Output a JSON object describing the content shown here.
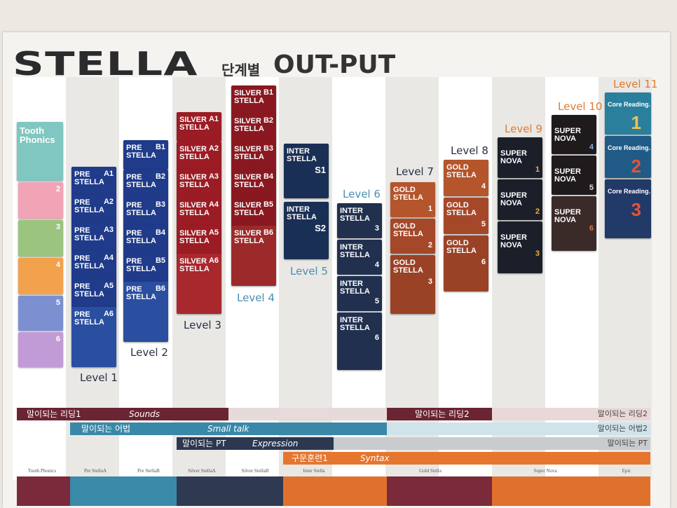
{
  "header": {
    "brand": "STELLA",
    "subtitle": "단계별",
    "subtitle2": "OUT-PUT"
  },
  "levels": [
    {
      "label": "Level 1",
      "color": "#2a2f44"
    },
    {
      "label": "Level 2",
      "color": "#2a2f44"
    },
    {
      "label": "Level 3",
      "color": "#2a2f44"
    },
    {
      "label": "Level 4",
      "color": "#4a8fb3"
    },
    {
      "label": "Level 5",
      "color": "#4a8fb3"
    },
    {
      "label": "Level 6",
      "color": "#4a8fb3"
    },
    {
      "label": "Level 7",
      "color": "#2a2f44"
    },
    {
      "label": "Level 8",
      "color": "#2a2f44"
    },
    {
      "label": "Level 9",
      "color": "#e07a2e"
    },
    {
      "label": "Level 10",
      "color": "#e07a2e"
    },
    {
      "label": "Level 11",
      "color": "#e07a2e"
    }
  ],
  "books": {
    "tooth": {
      "title": "Tooth Phonics",
      "nums": [
        "1",
        "2",
        "3",
        "4",
        "5",
        "6"
      ]
    },
    "pre_a": {
      "title": "PRE STELLA",
      "nums": [
        "A1",
        "A2",
        "A3",
        "A4",
        "A5",
        "A6"
      ]
    },
    "pre_b": {
      "title": "PRE STELLA",
      "nums": [
        "B1",
        "B2",
        "B3",
        "B4",
        "B5",
        "B6"
      ]
    },
    "silver_a": {
      "title": "SILVER STELLA",
      "nums": [
        "A1",
        "A2",
        "A3",
        "A4",
        "A5",
        "A6"
      ]
    },
    "silver_b": {
      "title": "SILVER STELLA",
      "nums": [
        "B1",
        "B2",
        "B3",
        "B4",
        "B5",
        "B6"
      ]
    },
    "inter_s": {
      "title": "INTER STELLA",
      "nums": [
        "S1",
        "S2"
      ]
    },
    "inter": {
      "title": "INTER STELLA",
      "nums": [
        "3",
        "4",
        "5",
        "6"
      ]
    },
    "gold_a": {
      "title": "GOLD STELLA",
      "nums": [
        "1",
        "2",
        "3"
      ]
    },
    "gold_b": {
      "title": "GOLD STELLA",
      "nums": [
        "4",
        "5",
        "6"
      ]
    },
    "nova_a": {
      "title": "SUPER NOVA",
      "nums": [
        "1",
        "2",
        "3"
      ]
    },
    "nova_b": {
      "title": "SUPER NOVA",
      "nums": [
        "4",
        "5",
        "6"
      ]
    },
    "core": {
      "title": "Core Reading.",
      "nums": [
        "1",
        "2",
        "3"
      ]
    }
  },
  "bars": [
    {
      "left": "말이되는 리딩1",
      "mid": "Sounds",
      "right": "말이되는 리딩2",
      "right_left": "말이되는 리딩2"
    },
    {
      "left": "말이되는 어법",
      "mid": "Small talk",
      "right": "말이되는 어법2"
    },
    {
      "left": "말이되는 PT",
      "mid": "Expression",
      "right": "말이되는 PT"
    },
    {
      "left": "구문훈련1",
      "mid": "Syntax"
    }
  ],
  "columns": [
    "Tooth Phonics",
    "Pre StellaA",
    "Pre StellaB",
    "Silver StellaA",
    "Silver StellaB",
    "Inter Stella",
    "",
    "Gold Stella",
    "",
    "Super Nova",
    "",
    "Epic"
  ]
}
